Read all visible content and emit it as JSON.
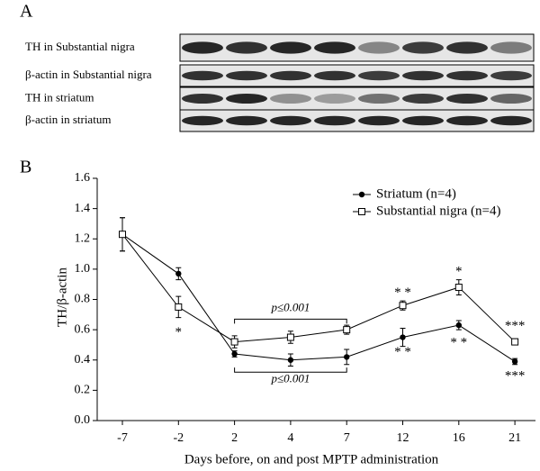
{
  "panel_a": {
    "label": "A",
    "rows": [
      "TH in Substantial nigra",
      "β-actin in Substantial nigra",
      "TH in striatum",
      "β-actin in striatum"
    ]
  },
  "chart_data": {
    "type": "line",
    "panel_label": "B",
    "x_label": "Days before, on and post MPTP administration",
    "y_label": "TH/β-actin",
    "categories": [
      "-7",
      "-2",
      "2",
      "4",
      "7",
      "12",
      "16",
      "21"
    ],
    "series": [
      {
        "name": "Striatum (n=4)",
        "color": "#000000",
        "marker": "filled-circle",
        "values": [
          1.23,
          0.97,
          0.44,
          0.4,
          0.42,
          0.55,
          0.63,
          0.39
        ],
        "errors": [
          0.11,
          0.04,
          0.02,
          0.04,
          0.05,
          0.06,
          0.03,
          0.02
        ]
      },
      {
        "name": "Substantial nigra (n=4)",
        "color": "#000000",
        "marker": "open-square",
        "values": [
          1.23,
          0.75,
          0.52,
          0.55,
          0.6,
          0.76,
          0.88,
          0.52
        ],
        "errors": [
          0.11,
          0.07,
          0.04,
          0.04,
          0.03,
          0.03,
          0.05,
          0.02
        ]
      }
    ],
    "ylim": [
      0,
      1.6
    ],
    "yticks": [
      {
        "value": 0,
        "label": "0.0"
      },
      0.2,
      0.4,
      0.6,
      0.8,
      {
        "value": 1,
        "label": "1.0"
      },
      1.2,
      1.4,
      1.6
    ],
    "legend": "upper right",
    "annotations": [
      "*",
      "* *",
      "*",
      "***",
      "* *",
      "* *",
      "***",
      "p≤0.001",
      "p≤0.001"
    ]
  }
}
